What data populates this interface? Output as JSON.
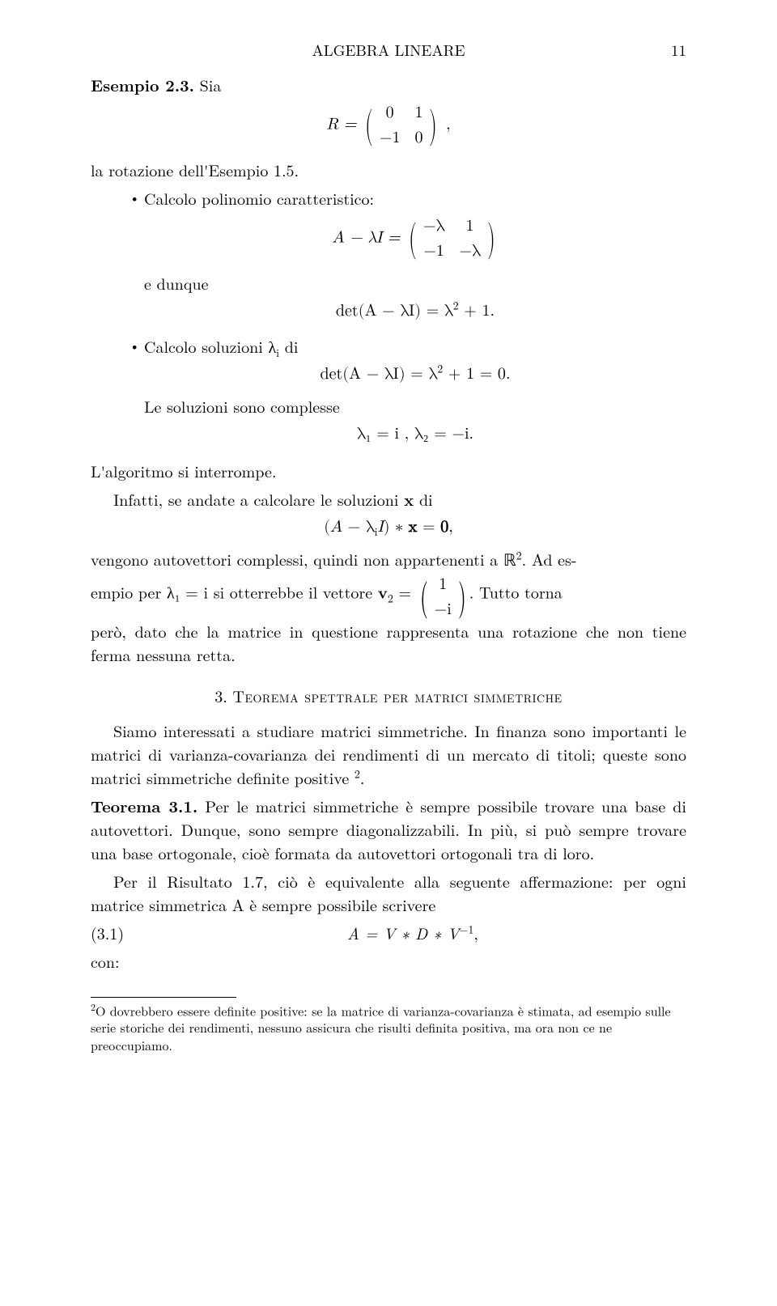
{
  "header": {
    "title": "ALGEBRA LINEARE",
    "pagenum": "11"
  },
  "esempio": {
    "label": "Esempio 2.3.",
    "sia": "Sia",
    "R_eq_prefix": "R = ",
    "R_matrix": [
      "0",
      "1",
      "−1",
      "0"
    ],
    "R_suffix": ",",
    "rotazione": "la rotazione dell'Esempio 1.5.",
    "b1": "Calcolo polinomio caratteristico:",
    "AlI_prefix": "A − λI = ",
    "AlI_matrix": [
      "−λ",
      "1",
      "−1",
      "−λ"
    ],
    "edunque": "e dunque",
    "det1": "det(A − λI) = λ",
    "det1_exp": "2",
    "det1_tail": " + 1.",
    "b2_pre": "Calcolo soluzioni λ",
    "b2_sub": "i",
    "b2_post": " di",
    "det2": "det(A − λI) = λ",
    "det2_exp": "2",
    "det2_tail": " + 1 = 0.",
    "lesol": "Le soluzioni sono complesse",
    "lambdas": "λ₁ = i ,  λ₂ = −i.",
    "interrompe": "L'algoritmo si interrompe.",
    "infatti_pre": "Infatti, se andate a calcolare le soluzioni ",
    "infatti_x": "x",
    "infatti_post": " di",
    "Axeq": "(A − λᵢI) ∗ x = 0,",
    "vengono": "vengono autovettori complessi, quindi non appartenenti a ℝ",
    "vengono_exp": "2",
    "vengono_tail": ". Ad es-",
    "empio_pre": "empio per λ₁ = i si otterrebbe il vettore ",
    "v2": "v",
    "v2sub": "2",
    "v2eq": " = ",
    "v2_col": [
      "1",
      "−i"
    ],
    "empio_post": ". Tutto torna",
    "pero": "però, dato che la matrice in questione rappresenta una rotazione che non tiene ferma nessuna retta."
  },
  "section3": {
    "num": "3.",
    "title": "Teorema spettrale per matrici simmetriche",
    "p1": "Siamo interessati a studiare matrici simmetriche. In finanza sono importanti le matrici di varianza-covarianza dei rendimenti di un mercato di titoli; queste sono matrici simmetriche definite positive ",
    "p1_fn": "2",
    "p1_tail": ".",
    "teo_label": "Teorema 3.1.",
    "teo": " Per le matrici simmetriche è sempre possibile trovare una base di autovettori. Dunque, sono sempre diagonalizzabili. In più, si può sempre trovare una base ortogonale, cioè formata da autovettori ortogonali tra di loro.",
    "p2": "Per il Risultato 1.7, ciò è equivalente alla seguente affermazione: per ogni matrice simmetrica A è sempre possibile scrivere",
    "eqnum": "(3.1)",
    "eq": "A = V ∗ D ∗ V",
    "eq_exp": "−1",
    "eq_tail": ",",
    "con": "con:"
  },
  "footnote": {
    "mark": "2",
    "text": "O dovrebbero essere definite positive: se la matrice di varianza-covarianza è stimata, ad esempio sulle serie storiche dei rendimenti, nessuno assicura che risulti definita positiva, ma ora non ce ne preoccupiamo."
  }
}
